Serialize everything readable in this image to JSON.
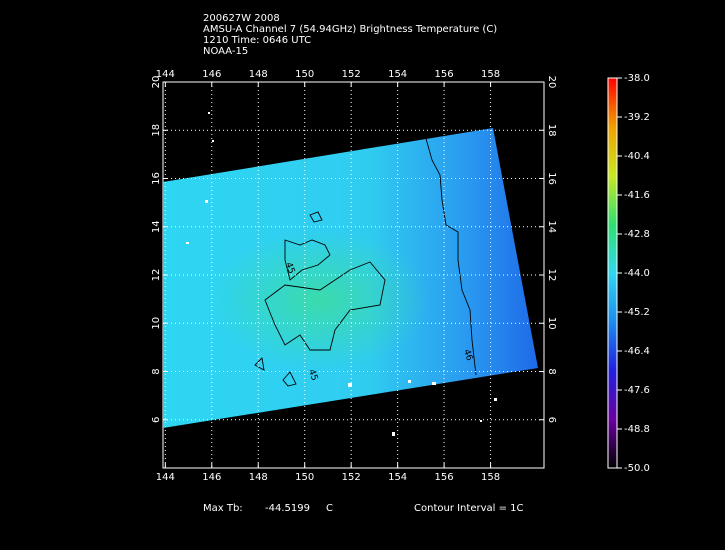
{
  "chart_data": {
    "type": "map",
    "title_lines": [
      "200627W 2008",
      "AMSU-A Channel 7 (54.94GHz) Brightness Temperature (C)",
      "1210 Time: 0646 UTC",
      "NOAA-15"
    ],
    "xlim": [
      143.9,
      160.3
    ],
    "ylim": [
      4,
      20
    ],
    "xticks": [
      144,
      146,
      148,
      150,
      152,
      154,
      156,
      158
    ],
    "yticks": [
      6,
      8,
      10,
      12,
      14,
      16,
      18,
      20
    ],
    "grid": true,
    "colorbar": {
      "clim": [
        -50,
        -38
      ],
      "colors": [
        "#000000",
        "#6a00a0",
        "#2020e0",
        "#1c8cf0",
        "#30d8f0",
        "#30e070",
        "#c8e820",
        "#f0a000",
        "#ff0000"
      ],
      "ticks": [
        {
          "value": -38,
          "label": "-38.0"
        },
        {
          "value": -39.2,
          "label": "-39.2"
        },
        {
          "value": -40.4,
          "label": "-40.4"
        },
        {
          "value": -41.6,
          "label": "-41.6"
        },
        {
          "value": -42.8,
          "label": "-42.8"
        },
        {
          "value": -44,
          "label": "-44.0"
        },
        {
          "value": -45.2,
          "label": "-45.2"
        },
        {
          "value": -46.4,
          "label": "-46.4"
        },
        {
          "value": -47.6,
          "label": "-47.6"
        },
        {
          "value": -48.8,
          "label": "-48.8"
        },
        {
          "value": -50,
          "label": "-50.0"
        }
      ]
    },
    "contour_labels": [
      "45",
      "45",
      "46"
    ],
    "max_tb": {
      "label": "Max Tb:",
      "value": -44.5199,
      "unit": "C"
    },
    "contour_interval": "Contour Interval = 1C"
  }
}
